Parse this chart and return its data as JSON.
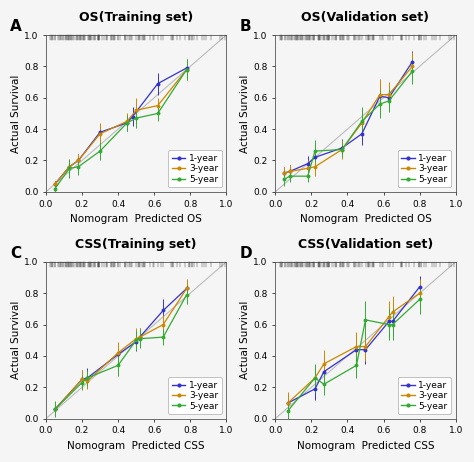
{
  "panels": [
    {
      "label": "A",
      "title": "OS(Training set)",
      "xlabel": "Nomogram  Predicted OS",
      "ylabel": "Actual Survival",
      "lines": [
        {
          "name": "1-year",
          "color": "#3333CC",
          "x": [
            0.05,
            0.13,
            0.18,
            0.3,
            0.45,
            0.48,
            0.62,
            0.78
          ],
          "y": [
            0.05,
            0.16,
            0.2,
            0.38,
            0.44,
            0.48,
            0.69,
            0.79
          ],
          "yerr_lo": [
            0.02,
            0.04,
            0.04,
            0.05,
            0.05,
            0.06,
            0.07,
            0.05
          ],
          "yerr_hi": [
            0.02,
            0.04,
            0.04,
            0.05,
            0.05,
            0.06,
            0.07,
            0.05
          ]
        },
        {
          "name": "3-year",
          "color": "#CC8800",
          "x": [
            0.05,
            0.13,
            0.18,
            0.3,
            0.45,
            0.5,
            0.62,
            0.78
          ],
          "y": [
            0.05,
            0.16,
            0.2,
            0.37,
            0.45,
            0.52,
            0.55,
            0.78
          ],
          "yerr_lo": [
            0.02,
            0.04,
            0.04,
            0.07,
            0.05,
            0.08,
            0.05,
            0.07
          ],
          "yerr_hi": [
            0.02,
            0.04,
            0.04,
            0.07,
            0.05,
            0.08,
            0.05,
            0.07
          ]
        },
        {
          "name": "5-year",
          "color": "#33AA33",
          "x": [
            0.05,
            0.13,
            0.18,
            0.3,
            0.45,
            0.5,
            0.62,
            0.78
          ],
          "y": [
            0.02,
            0.15,
            0.16,
            0.26,
            0.44,
            0.47,
            0.5,
            0.78
          ],
          "yerr_lo": [
            0.02,
            0.06,
            0.05,
            0.06,
            0.05,
            0.06,
            0.05,
            0.07
          ],
          "yerr_hi": [
            0.02,
            0.06,
            0.05,
            0.06,
            0.05,
            0.06,
            0.05,
            0.07
          ]
        }
      ]
    },
    {
      "label": "B",
      "title": "OS(Validation set)",
      "xlabel": "Nomogram  Predicted OS",
      "ylabel": "Actual Survival",
      "lines": [
        {
          "name": "1-year",
          "color": "#3333CC",
          "x": [
            0.05,
            0.08,
            0.18,
            0.22,
            0.37,
            0.48,
            0.58,
            0.63,
            0.76
          ],
          "y": [
            0.12,
            0.13,
            0.18,
            0.22,
            0.28,
            0.37,
            0.61,
            0.6,
            0.83
          ],
          "yerr_lo": [
            0.04,
            0.04,
            0.05,
            0.06,
            0.06,
            0.07,
            0.07,
            0.08,
            0.07
          ],
          "yerr_hi": [
            0.04,
            0.04,
            0.05,
            0.06,
            0.06,
            0.07,
            0.07,
            0.08,
            0.07
          ]
        },
        {
          "name": "3-year",
          "color": "#CC8800",
          "x": [
            0.05,
            0.08,
            0.18,
            0.22,
            0.37,
            0.48,
            0.58,
            0.63,
            0.76
          ],
          "y": [
            0.12,
            0.13,
            0.15,
            0.16,
            0.27,
            0.44,
            0.62,
            0.62,
            0.8
          ],
          "yerr_lo": [
            0.04,
            0.04,
            0.05,
            0.06,
            0.06,
            0.08,
            0.1,
            0.08,
            0.09
          ],
          "yerr_hi": [
            0.04,
            0.04,
            0.05,
            0.06,
            0.06,
            0.08,
            0.1,
            0.08,
            0.09
          ]
        },
        {
          "name": "5-year",
          "color": "#33AA33",
          "x": [
            0.05,
            0.08,
            0.18,
            0.22,
            0.37,
            0.48,
            0.58,
            0.63,
            0.76
          ],
          "y": [
            0.08,
            0.1,
            0.1,
            0.26,
            0.27,
            0.45,
            0.56,
            0.58,
            0.77
          ],
          "yerr_lo": [
            0.04,
            0.04,
            0.04,
            0.07,
            0.05,
            0.09,
            0.09,
            0.07,
            0.08
          ],
          "yerr_hi": [
            0.04,
            0.04,
            0.04,
            0.07,
            0.05,
            0.09,
            0.09,
            0.07,
            0.08
          ]
        }
      ]
    },
    {
      "label": "C",
      "title": "CSS(Training set)",
      "xlabel": "Nomogram  Predicted CSS",
      "ylabel": "Actual Survival",
      "lines": [
        {
          "name": "1-year",
          "color": "#3333CC",
          "x": [
            0.05,
            0.2,
            0.23,
            0.4,
            0.5,
            0.52,
            0.65,
            0.78
          ],
          "y": [
            0.06,
            0.25,
            0.26,
            0.41,
            0.49,
            0.52,
            0.69,
            0.83
          ],
          "yerr_lo": [
            0.02,
            0.06,
            0.06,
            0.05,
            0.06,
            0.06,
            0.07,
            0.05
          ],
          "yerr_hi": [
            0.02,
            0.06,
            0.06,
            0.05,
            0.06,
            0.06,
            0.07,
            0.05
          ]
        },
        {
          "name": "3-year",
          "color": "#CC8800",
          "x": [
            0.05,
            0.2,
            0.23,
            0.4,
            0.5,
            0.52,
            0.65,
            0.78
          ],
          "y": [
            0.06,
            0.25,
            0.24,
            0.42,
            0.51,
            0.52,
            0.6,
            0.83
          ],
          "yerr_lo": [
            0.02,
            0.06,
            0.05,
            0.07,
            0.07,
            0.06,
            0.06,
            0.06
          ],
          "yerr_hi": [
            0.02,
            0.06,
            0.05,
            0.07,
            0.07,
            0.06,
            0.06,
            0.06
          ]
        },
        {
          "name": "5-year",
          "color": "#33AA33",
          "x": [
            0.05,
            0.2,
            0.23,
            0.4,
            0.5,
            0.52,
            0.65,
            0.78
          ],
          "y": [
            0.06,
            0.23,
            0.26,
            0.34,
            0.5,
            0.51,
            0.52,
            0.79
          ],
          "yerr_lo": [
            0.05,
            0.05,
            0.05,
            0.07,
            0.06,
            0.06,
            0.05,
            0.06
          ],
          "yerr_hi": [
            0.05,
            0.05,
            0.05,
            0.07,
            0.06,
            0.06,
            0.05,
            0.06
          ]
        }
      ]
    },
    {
      "label": "D",
      "title": "CSS(Validation set)",
      "xlabel": "Nomogram  Predicted CSS",
      "ylabel": "Actual Survival",
      "lines": [
        {
          "name": "1-year",
          "color": "#3333CC",
          "x": [
            0.07,
            0.22,
            0.27,
            0.45,
            0.5,
            0.63,
            0.65,
            0.8
          ],
          "y": [
            0.1,
            0.19,
            0.3,
            0.44,
            0.44,
            0.62,
            0.62,
            0.84
          ],
          "yerr_lo": [
            0.06,
            0.07,
            0.08,
            0.09,
            0.09,
            0.1,
            0.09,
            0.07
          ],
          "yerr_hi": [
            0.06,
            0.07,
            0.08,
            0.09,
            0.09,
            0.1,
            0.09,
            0.07
          ]
        },
        {
          "name": "3-year",
          "color": "#CC8800",
          "x": [
            0.07,
            0.22,
            0.27,
            0.45,
            0.5,
            0.63,
            0.65,
            0.8
          ],
          "y": [
            0.1,
            0.26,
            0.35,
            0.46,
            0.46,
            0.65,
            0.68,
            0.8
          ],
          "yerr_lo": [
            0.07,
            0.08,
            0.09,
            0.09,
            0.09,
            0.1,
            0.1,
            0.09
          ],
          "yerr_hi": [
            0.07,
            0.08,
            0.09,
            0.09,
            0.09,
            0.1,
            0.1,
            0.09
          ]
        },
        {
          "name": "5-year",
          "color": "#33AA33",
          "x": [
            0.07,
            0.22,
            0.27,
            0.45,
            0.5,
            0.63,
            0.65,
            0.8
          ],
          "y": [
            0.05,
            0.26,
            0.22,
            0.34,
            0.63,
            0.6,
            0.6,
            0.76
          ],
          "yerr_lo": [
            0.05,
            0.09,
            0.07,
            0.08,
            0.12,
            0.1,
            0.1,
            0.09
          ],
          "yerr_hi": [
            0.05,
            0.09,
            0.07,
            0.08,
            0.12,
            0.1,
            0.1,
            0.09
          ]
        }
      ]
    }
  ],
  "ref_line_color": "#BBBBBB",
  "bg_color": "#F5F5F5",
  "plot_bg_color": "#F5F5F5",
  "tick_labelsize": 6.5,
  "axis_labelsize": 7.5,
  "title_fontsize": 9,
  "legend_fontsize": 6.5,
  "panel_label_fontsize": 11
}
